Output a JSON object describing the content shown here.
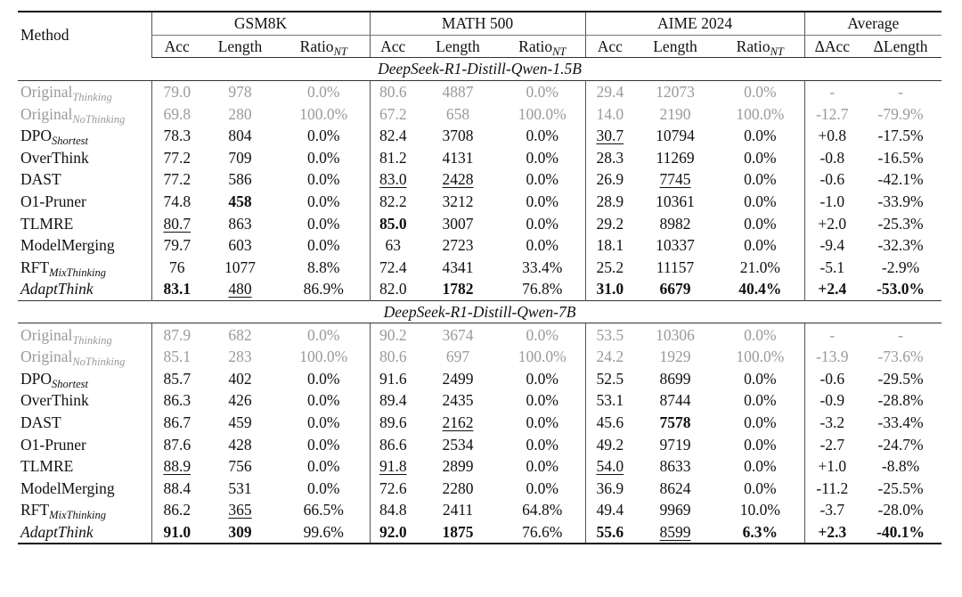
{
  "header": {
    "method": "Method",
    "groups": [
      "GSM8K",
      "MATH 500",
      "AIME 2024",
      "Average"
    ],
    "acc": "Acc",
    "length": "Length",
    "ratio": "Ratio",
    "ratio_sub": "NT",
    "dacc": "ΔAcc",
    "dlength": "ΔLength"
  },
  "sections": [
    {
      "title": "DeepSeek-R1-Distill-Qwen-1.5B",
      "rows": [
        {
          "name": "Original",
          "sub": "Thinking",
          "cells": [
            "79.0",
            "978",
            "0.0%",
            "80.6",
            "4887",
            "0.0%",
            "29.4",
            "12073",
            "0.0%",
            "-",
            "-"
          ]
        },
        {
          "name": "Original",
          "sub": "NoThinking",
          "cells": [
            "69.8",
            "280",
            "100.0%",
            "67.2",
            "658",
            "100.0%",
            "14.0",
            "2190",
            "100.0%",
            "-12.7",
            "-79.9%"
          ]
        },
        {
          "name": "DPO",
          "sub": "Shortest",
          "cells": [
            "78.3",
            "804",
            "0.0%",
            "82.4",
            "3708",
            "0.0%",
            "30.7",
            "10794",
            "0.0%",
            "+0.8",
            "-17.5%"
          ]
        },
        {
          "name": "OverThink",
          "sub": "",
          "cells": [
            "77.2",
            "709",
            "0.0%",
            "81.2",
            "4131",
            "0.0%",
            "28.3",
            "11269",
            "0.0%",
            "-0.8",
            "-16.5%"
          ]
        },
        {
          "name": "DAST",
          "sub": "",
          "cells": [
            "77.2",
            "586",
            "0.0%",
            "83.0",
            "2428",
            "0.0%",
            "26.9",
            "7745",
            "0.0%",
            "-0.6",
            "-42.1%"
          ]
        },
        {
          "name": "O1-Pruner",
          "sub": "",
          "cells": [
            "74.8",
            "458",
            "0.0%",
            "82.2",
            "3212",
            "0.0%",
            "28.9",
            "10361",
            "0.0%",
            "-1.0",
            "-33.9%"
          ]
        },
        {
          "name": "TLMRE",
          "sub": "",
          "cells": [
            "80.7",
            "863",
            "0.0%",
            "85.0",
            "3007",
            "0.0%",
            "29.2",
            "8982",
            "0.0%",
            "+2.0",
            "-25.3%"
          ]
        },
        {
          "name": "ModelMerging",
          "sub": "",
          "cells": [
            "79.7",
            "603",
            "0.0%",
            "63",
            "2723",
            "0.0%",
            "18.1",
            "10337",
            "0.0%",
            "-9.4",
            "-32.3%"
          ]
        },
        {
          "name": "RFT",
          "sub": "MixThinking",
          "cells": [
            "76",
            "1077",
            "8.8%",
            "72.4",
            "4341",
            "33.4%",
            "25.2",
            "11157",
            "21.0%",
            "-5.1",
            "-2.9%"
          ]
        },
        {
          "name": "AdaptThink",
          "sub": "",
          "cells": [
            "83.1",
            "480",
            "86.9%",
            "82.0",
            "1782",
            "76.8%",
            "31.0",
            "6679",
            "40.4%",
            "+2.4",
            "-53.0%"
          ]
        }
      ]
    },
    {
      "title": "DeepSeek-R1-Distill-Qwen-7B",
      "rows": [
        {
          "name": "Original",
          "sub": "Thinking",
          "cells": [
            "87.9",
            "682",
            "0.0%",
            "90.2",
            "3674",
            "0.0%",
            "53.5",
            "10306",
            "0.0%",
            "-",
            "-"
          ]
        },
        {
          "name": "Original",
          "sub": "NoThinking",
          "cells": [
            "85.1",
            "283",
            "100.0%",
            "80.6",
            "697",
            "100.0%",
            "24.2",
            "1929",
            "100.0%",
            "-13.9",
            "-73.6%"
          ]
        },
        {
          "name": "DPO",
          "sub": "Shortest",
          "cells": [
            "85.7",
            "402",
            "0.0%",
            "91.6",
            "2499",
            "0.0%",
            "52.5",
            "8699",
            "0.0%",
            "-0.6",
            "-29.5%"
          ]
        },
        {
          "name": "OverThink",
          "sub": "",
          "cells": [
            "86.3",
            "426",
            "0.0%",
            "89.4",
            "2435",
            "0.0%",
            "53.1",
            "8744",
            "0.0%",
            "-0.9",
            "-28.8%"
          ]
        },
        {
          "name": "DAST",
          "sub": "",
          "cells": [
            "86.7",
            "459",
            "0.0%",
            "89.6",
            "2162",
            "0.0%",
            "45.6",
            "7578",
            "0.0%",
            "-3.2",
            "-33.4%"
          ]
        },
        {
          "name": "O1-Pruner",
          "sub": "",
          "cells": [
            "87.6",
            "428",
            "0.0%",
            "86.6",
            "2534",
            "0.0%",
            "49.2",
            "9719",
            "0.0%",
            "-2.7",
            "-24.7%"
          ]
        },
        {
          "name": "TLMRE",
          "sub": "",
          "cells": [
            "88.9",
            "756",
            "0.0%",
            "91.8",
            "2899",
            "0.0%",
            "54.0",
            "8633",
            "0.0%",
            "+1.0",
            "-8.8%"
          ]
        },
        {
          "name": "ModelMerging",
          "sub": "",
          "cells": [
            "88.4",
            "531",
            "0.0%",
            "72.6",
            "2280",
            "0.0%",
            "36.9",
            "8624",
            "0.0%",
            "-11.2",
            "-25.5%"
          ]
        },
        {
          "name": "RFT",
          "sub": "MixThinking",
          "cells": [
            "86.2",
            "365",
            "66.5%",
            "84.8",
            "2411",
            "64.8%",
            "49.4",
            "9969",
            "10.0%",
            "-3.7",
            "-28.0%"
          ]
        },
        {
          "name": "AdaptThink",
          "sub": "",
          "cells": [
            "91.0",
            "309",
            "99.6%",
            "92.0",
            "1875",
            "76.6%",
            "55.6",
            "8599",
            "6.3%",
            "+2.3",
            "-40.1%"
          ]
        }
      ]
    }
  ]
}
